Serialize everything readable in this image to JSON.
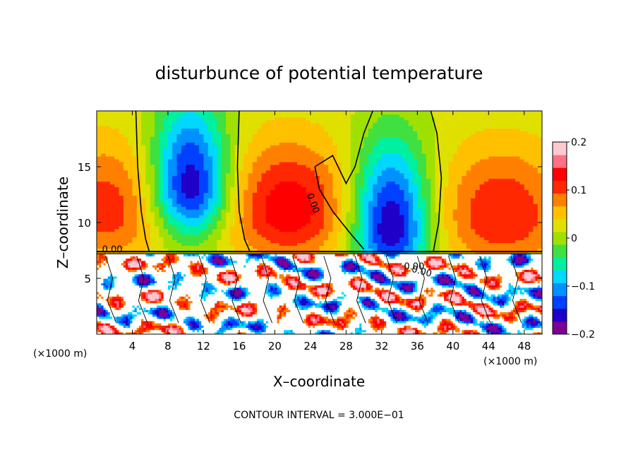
{
  "chart_data": {
    "type": "heatmap",
    "title": "disturbunce of potential temperature",
    "xlabel": "X–coordinate",
    "ylabel": "Z–coordinate",
    "x_unit": "(×1000 m)",
    "z_unit": "(×1000 m)",
    "xlim": [
      0,
      50
    ],
    "ylim": [
      0,
      20
    ],
    "x_ticks": [
      "4",
      "8",
      "12",
      "16",
      "20",
      "24",
      "28",
      "32",
      "36",
      "40",
      "44",
      "48"
    ],
    "y_ticks": [
      "5",
      "10",
      "15"
    ],
    "colorbar": {
      "range": [
        -0.2,
        0.2
      ],
      "ticks": [
        "0.2",
        "0.1",
        "0",
        "−0.1",
        "−0.2"
      ],
      "colors": [
        "#7a0096",
        "#1e00c8",
        "#0040ff",
        "#0090ff",
        "#00d8ff",
        "#00f0a0",
        "#40e040",
        "#a0e000",
        "#e0e000",
        "#ffc000",
        "#ff8000",
        "#ff2800",
        "#ff0000",
        "#ff7080",
        "#ffc8d0"
      ]
    },
    "contour_labels": [
      "0.00",
      "0.00",
      "0.00",
      "0.00"
    ],
    "contour_interval_text": "CONTOUR INTERVAL =  3.000E−01",
    "features": [
      {
        "kind": "cold",
        "x": 10.5,
        "z": 13.0,
        "amplitude": -0.2
      },
      {
        "kind": "warm",
        "x": 21.5,
        "z": 11.0,
        "amplitude": 0.12
      },
      {
        "kind": "cold",
        "x": 33.0,
        "z": 9.5,
        "amplitude": -0.2
      },
      {
        "kind": "warm",
        "x": 45.5,
        "z": 10.5,
        "amplitude": 0.1
      },
      {
        "kind": "warm",
        "x": 1.0,
        "z": 11.0,
        "amplitude": 0.09
      }
    ]
  }
}
